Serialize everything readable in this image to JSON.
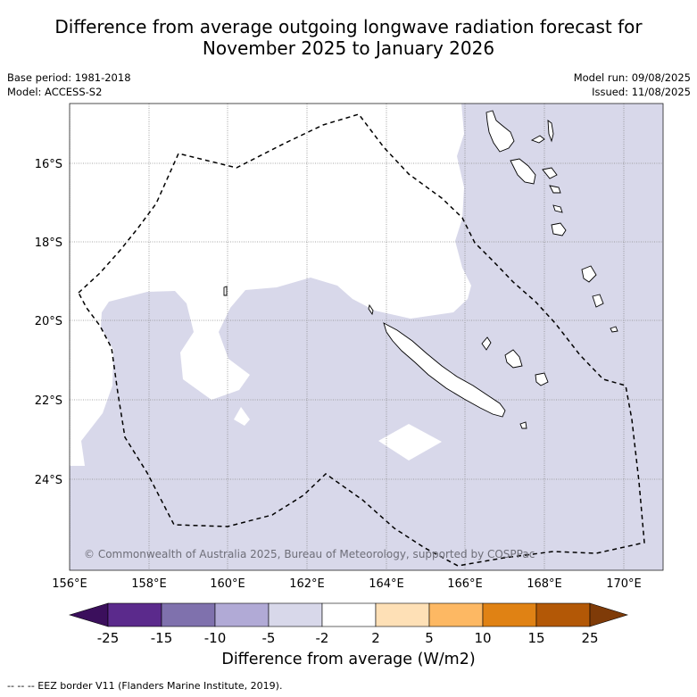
{
  "title_line1": "Difference from average outgoing longwave radiation forecast for",
  "title_line2": "November 2025 to January 2026",
  "base_period": "Base period: 1981-2018",
  "model": "Model: ACCESS-S2",
  "model_run": "Model run: 09/08/2025",
  "issued": "Issued: 11/08/2025",
  "copyright": "© Commonwealth of Australia 2025, Bureau of Meteorology, supported by COSPPac",
  "lat_labels": [
    "16°S",
    "18°S",
    "20°S",
    "22°S",
    "24°S"
  ],
  "lon_labels": [
    "156°E",
    "158°E",
    "160°E",
    "162°E",
    "164°E",
    "166°E",
    "168°E",
    "170°E"
  ],
  "colorbar": {
    "title": "Difference from average (W/m2)",
    "ticks": [
      "-25",
      "-15",
      "-10",
      "-5",
      "-2",
      "2",
      "5",
      "10",
      "15",
      "25"
    ],
    "colors": [
      "#3b0f5c",
      "#5b2a8c",
      "#7f71ad",
      "#b1aad6",
      "#d8d8ea",
      "#ffffff",
      "#fee0b6",
      "#fdb863",
      "#e08214",
      "#b35806",
      "#7f3b08"
    ]
  },
  "legend_note": "--  --  -- EEZ border V11 (Flanders Marine Institute, 2019)."
}
